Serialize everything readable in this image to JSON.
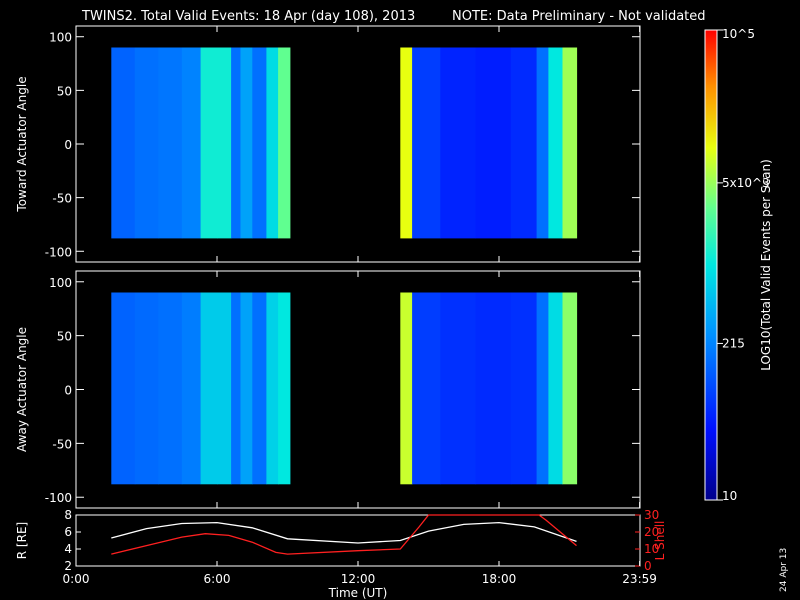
{
  "title": "TWINS2. Total Valid Events: 18 Apr (day 108), 2013",
  "note": "NOTE: Data Preliminary - Not validated",
  "footer_date": "24 Apr 13",
  "colors": {
    "note": "#ff2020",
    "lshell": "#ff2020",
    "r_line": "#ffffff"
  },
  "colorbar": {
    "label": "LOG10(Total Valid Events per Scan)",
    "tick_labels": [
      "10",
      "215",
      "5x10^3",
      "10^5"
    ],
    "tick_values": [
      10,
      215,
      5000,
      100000
    ],
    "range": [
      10,
      100000
    ],
    "scale": "log"
  },
  "chart_data": [
    {
      "type": "heatmap",
      "name": "toward",
      "ylabel": "Toward Actuator Angle",
      "xlim": [
        0,
        24
      ],
      "ylim": [
        -110,
        110
      ],
      "yticks": [
        -100,
        -50,
        0,
        50,
        100
      ],
      "data_y_range": [
        -88,
        90
      ],
      "segments": [
        {
          "t_start": 1.5,
          "t_end": 9.1
        },
        {
          "t_start": 13.8,
          "t_end": 21.3
        }
      ],
      "column_levels": [
        {
          "t": 1.5,
          "level": 0.28
        },
        {
          "t": 2.5,
          "level": 0.3
        },
        {
          "t": 3.5,
          "level": 0.31
        },
        {
          "t": 4.5,
          "level": 0.33
        },
        {
          "t": 5.3,
          "level": 0.52
        },
        {
          "t": 6.0,
          "level": 0.52
        },
        {
          "t": 6.6,
          "level": 0.3
        },
        {
          "t": 7.0,
          "level": 0.38
        },
        {
          "t": 7.5,
          "level": 0.3
        },
        {
          "t": 8.1,
          "level": 0.48
        },
        {
          "t": 8.6,
          "level": 0.62
        },
        {
          "t": 13.8,
          "level": 0.75
        },
        {
          "t": 14.3,
          "level": 0.22
        },
        {
          "t": 15.5,
          "level": 0.18
        },
        {
          "t": 17.0,
          "level": 0.17
        },
        {
          "t": 18.5,
          "level": 0.19
        },
        {
          "t": 19.6,
          "level": 0.3
        },
        {
          "t": 20.1,
          "level": 0.5
        },
        {
          "t": 20.7,
          "level": 0.68
        }
      ]
    },
    {
      "type": "heatmap",
      "name": "away",
      "ylabel": "Away Actuator Angle",
      "xlim": [
        0,
        24
      ],
      "ylim": [
        -110,
        110
      ],
      "yticks": [
        -100,
        -50,
        0,
        50,
        100
      ],
      "data_y_range": [
        -88,
        90
      ],
      "segments": [
        {
          "t_start": 1.5,
          "t_end": 9.1
        },
        {
          "t_start": 13.8,
          "t_end": 21.3
        }
      ],
      "column_levels": [
        {
          "t": 1.5,
          "level": 0.28
        },
        {
          "t": 2.5,
          "level": 0.29
        },
        {
          "t": 3.5,
          "level": 0.3
        },
        {
          "t": 4.5,
          "level": 0.32
        },
        {
          "t": 5.3,
          "level": 0.45
        },
        {
          "t": 6.0,
          "level": 0.45
        },
        {
          "t": 6.6,
          "level": 0.3
        },
        {
          "t": 7.0,
          "level": 0.38
        },
        {
          "t": 7.5,
          "level": 0.3
        },
        {
          "t": 8.1,
          "level": 0.46
        },
        {
          "t": 8.6,
          "level": 0.5
        },
        {
          "t": 13.8,
          "level": 0.72
        },
        {
          "t": 14.3,
          "level": 0.22
        },
        {
          "t": 15.5,
          "level": 0.2
        },
        {
          "t": 17.0,
          "level": 0.19
        },
        {
          "t": 18.5,
          "level": 0.2
        },
        {
          "t": 19.6,
          "level": 0.3
        },
        {
          "t": 20.1,
          "level": 0.48
        },
        {
          "t": 20.7,
          "level": 0.66
        }
      ]
    },
    {
      "type": "line",
      "name": "orbit",
      "xlabel": "Time (UT)",
      "xlim": [
        0,
        24
      ],
      "xticks": [
        0,
        6,
        12,
        18,
        23.983
      ],
      "xtick_labels": [
        "0:00",
        "6:00",
        "12:00",
        "18:00",
        "23:59"
      ],
      "ylabel": "R [RE]",
      "ylim": [
        2,
        8
      ],
      "yticks": [
        2,
        4,
        6,
        8
      ],
      "y2label": "L Shell",
      "y2lim": [
        0,
        30
      ],
      "y2ticks": [
        0,
        10,
        20,
        30
      ],
      "series": [
        {
          "axis": "left",
          "x": [
            1.5,
            3,
            4.5,
            6,
            7.5,
            9,
            12,
            13.8,
            15,
            16.5,
            18,
            19.5,
            21.3
          ],
          "y": [
            5.3,
            6.4,
            7.0,
            7.1,
            6.5,
            5.2,
            4.7,
            5.0,
            6.1,
            6.9,
            7.1,
            6.6,
            4.9
          ]
        },
        {
          "axis": "right",
          "x": [
            1.5,
            3,
            4.5,
            5.5,
            6.5,
            7.5,
            8.5,
            9.0,
            12.0,
            13.8,
            14.6,
            15.0,
            19.7,
            20.0,
            21.3
          ],
          "y": [
            7,
            12,
            17,
            19,
            18,
            14,
            8,
            7,
            9,
            10,
            23,
            30,
            30,
            27,
            12
          ]
        }
      ]
    }
  ]
}
